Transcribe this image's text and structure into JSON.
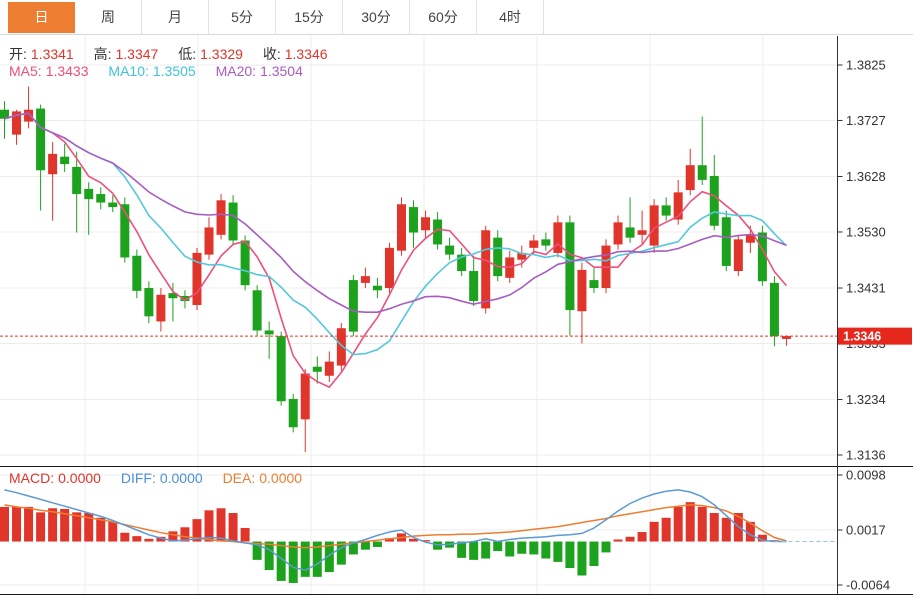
{
  "tabs": {
    "items": [
      {
        "label": "日",
        "active": true
      },
      {
        "label": "周",
        "active": false
      },
      {
        "label": "月",
        "active": false
      },
      {
        "label": "5分",
        "active": false
      },
      {
        "label": "15分",
        "active": false
      },
      {
        "label": "30分",
        "active": false
      },
      {
        "label": "60分",
        "active": false
      },
      {
        "label": "4时",
        "active": false
      }
    ]
  },
  "legend": {
    "open_label": "开:",
    "open_value": "1.3341",
    "high_label": "高:",
    "high_value": "1.3347",
    "low_label": "低:",
    "low_value": "1.3329",
    "close_label": "收:",
    "close_value": "1.3346",
    "ma5_label": "MA5:",
    "ma5_value": "1.3433",
    "ma10_label": "MA10:",
    "ma10_value": "1.3505",
    "ma20_label": "MA20:",
    "ma20_value": "1.3504"
  },
  "macd_legend": {
    "macd_label": "MACD:",
    "macd_value": "0.0000",
    "diff_label": "DIFF:",
    "diff_value": "0.0000",
    "dea_label": "DEA:",
    "dea_value": "0.0000"
  },
  "colors": {
    "up": "#e0352b",
    "down": "#1da21d",
    "ma5": "#ee4f7c",
    "ma10": "#55c8dc",
    "ma20": "#a85cc2",
    "diff": "#5b9bd5",
    "dea": "#ed7d31",
    "price_line": "#e0352b",
    "tag_bg": "#e6281c",
    "tag_text": "#ffffff",
    "grid": "#ececec",
    "axis_line": "#333333",
    "axis_text": "#333333",
    "accent_tab": "#ed7d31",
    "zero_dash": "#8ec6e8"
  },
  "chart_data": {
    "type": "candlestick",
    "panels": [
      {
        "name": "price",
        "y_axis_labels": [
          "1.3825",
          "1.3727",
          "1.3628",
          "1.3530",
          "1.3431",
          "1.3333",
          "1.3234",
          "1.3136"
        ],
        "y_top": 1.3825,
        "y_bottom": 1.3136,
        "last_price": 1.3346,
        "last_price_label": "1.3346",
        "ma_periods": [
          5,
          10,
          20
        ],
        "candles": [
          [
            1.3746,
            1.3761,
            1.3695,
            1.373
          ],
          [
            1.3702,
            1.3746,
            1.3684,
            1.3743
          ],
          [
            1.3725,
            1.3787,
            1.3713,
            1.3746
          ],
          [
            1.3748,
            1.3755,
            1.3568,
            1.3639
          ],
          [
            1.3632,
            1.3689,
            1.355,
            1.3668
          ],
          [
            1.3663,
            1.3686,
            1.3636,
            1.365
          ],
          [
            1.3645,
            1.3672,
            1.3529,
            1.3597
          ],
          [
            1.3606,
            1.3618,
            1.3525,
            1.3588
          ],
          [
            1.3597,
            1.3609,
            1.357,
            1.3582
          ],
          [
            1.3582,
            1.3595,
            1.3565,
            1.3574
          ],
          [
            1.3579,
            1.3591,
            1.3476,
            1.3485
          ],
          [
            1.3488,
            1.3499,
            1.3413,
            1.3426
          ],
          [
            1.3431,
            1.3443,
            1.3369,
            1.3381
          ],
          [
            1.3372,
            1.3431,
            1.3354,
            1.3419
          ],
          [
            1.3422,
            1.344,
            1.3372,
            1.3413
          ],
          [
            1.3417,
            1.3427,
            1.3395,
            1.3408
          ],
          [
            1.3401,
            1.3502,
            1.3392,
            1.3493
          ],
          [
            1.349,
            1.3556,
            1.3481,
            1.3538
          ],
          [
            1.3525,
            1.3597,
            1.3517,
            1.3586
          ],
          [
            1.3582,
            1.3595,
            1.3506,
            1.3515
          ],
          [
            1.3515,
            1.3524,
            1.3427,
            1.3436
          ],
          [
            1.3427,
            1.3436,
            1.3347,
            1.3356
          ],
          [
            1.3356,
            1.3372,
            1.3306,
            1.3349
          ],
          [
            1.3346,
            1.3354,
            1.3223,
            1.3231
          ],
          [
            1.3235,
            1.3244,
            1.3176,
            1.3185
          ],
          [
            1.3199,
            1.3288,
            1.3141,
            1.328
          ],
          [
            1.3292,
            1.331,
            1.3262,
            1.3283
          ],
          [
            1.3276,
            1.3319,
            1.3265,
            1.3301
          ],
          [
            1.3294,
            1.3369,
            1.3285,
            1.336
          ],
          [
            1.3445,
            1.3454,
            1.3346,
            1.3354
          ],
          [
            1.344,
            1.3467,
            1.3431,
            1.3452
          ],
          [
            1.3435,
            1.3449,
            1.3413,
            1.3427
          ],
          [
            1.3431,
            1.3511,
            1.3422,
            1.3502
          ],
          [
            1.3497,
            1.3591,
            1.3488,
            1.3579
          ],
          [
            1.3574,
            1.3586,
            1.3502,
            1.3529
          ],
          [
            1.3533,
            1.3568,
            1.352,
            1.3556
          ],
          [
            1.3552,
            1.3565,
            1.3499,
            1.3508
          ],
          [
            1.3506,
            1.352,
            1.3481,
            1.349
          ],
          [
            1.349,
            1.3502,
            1.3452,
            1.3461
          ],
          [
            1.3461,
            1.3488,
            1.3399,
            1.3408
          ],
          [
            1.3395,
            1.3541,
            1.3386,
            1.3533
          ],
          [
            1.352,
            1.3533,
            1.3443,
            1.3452
          ],
          [
            1.3449,
            1.3497,
            1.344,
            1.3485
          ],
          [
            1.3481,
            1.3506,
            1.3467,
            1.3493
          ],
          [
            1.3502,
            1.3525,
            1.349,
            1.3515
          ],
          [
            1.3517,
            1.3529,
            1.3497,
            1.3506
          ],
          [
            1.3493,
            1.3559,
            1.3485,
            1.3547
          ],
          [
            1.3547,
            1.3559,
            1.3347,
            1.3392
          ],
          [
            1.339,
            1.3476,
            1.3333,
            1.3463
          ],
          [
            1.3445,
            1.3467,
            1.3422,
            1.3431
          ],
          [
            1.3431,
            1.3517,
            1.3422,
            1.3506
          ],
          [
            1.3508,
            1.3559,
            1.3499,
            1.3547
          ],
          [
            1.3538,
            1.3591,
            1.3511,
            1.352
          ],
          [
            1.3525,
            1.3568,
            1.3508,
            1.3533
          ],
          [
            1.3506,
            1.3588,
            1.3493,
            1.3577
          ],
          [
            1.3577,
            1.3591,
            1.355,
            1.3559
          ],
          [
            1.3552,
            1.3622,
            1.3543,
            1.36
          ],
          [
            1.3604,
            1.3677,
            1.3595,
            1.3648
          ],
          [
            1.3648,
            1.3734,
            1.3613,
            1.3622
          ],
          [
            1.3629,
            1.3666,
            1.3533,
            1.3541
          ],
          [
            1.3556,
            1.3568,
            1.3461,
            1.347
          ],
          [
            1.3461,
            1.3525,
            1.3452,
            1.3517
          ],
          [
            1.3511,
            1.3541,
            1.3493,
            1.3524
          ],
          [
            1.3529,
            1.3541,
            1.3435,
            1.3443
          ],
          [
            1.344,
            1.3452,
            1.3328,
            1.3346
          ],
          [
            1.3341,
            1.3347,
            1.3329,
            1.3346
          ]
        ]
      },
      {
        "name": "macd",
        "y_axis_labels": [
          "0.0098",
          "0.0017",
          "-0.0064"
        ],
        "y_top": 0.0098,
        "y_bottom": -0.0064,
        "hist": [
          0.0051,
          0.0051,
          0.0051,
          0.0043,
          0.0049,
          0.0048,
          0.0043,
          0.0042,
          0.0035,
          0.0029,
          0.0013,
          0.0008,
          0.0004,
          0.0007,
          0.0015,
          0.0021,
          0.0033,
          0.0046,
          0.0049,
          0.0042,
          0.002,
          -0.0027,
          -0.0042,
          -0.0058,
          -0.0061,
          -0.0052,
          -0.0052,
          -0.0045,
          -0.0034,
          -0.0019,
          -0.0012,
          -0.0008,
          0.0005,
          0.0012,
          0.0004,
          0.0002,
          -0.0012,
          -0.0009,
          -0.0024,
          -0.0027,
          -0.0025,
          -0.0014,
          -0.0022,
          -0.0018,
          -0.0019,
          -0.0025,
          -0.003,
          -0.0039,
          -0.005,
          -0.0036,
          -0.0016,
          0.0003,
          0.0007,
          0.0014,
          0.0029,
          0.0035,
          0.0051,
          0.0058,
          0.0051,
          0.0042,
          0.0035,
          0.0042,
          0.0029,
          0.001,
          0.0002,
          0.0
        ],
        "diff": [
          0.0076,
          0.0072,
          0.0067,
          0.0062,
          0.0057,
          0.0052,
          0.0047,
          0.0042,
          0.0037,
          0.0031,
          0.0024,
          0.0017,
          0.001,
          0.0005,
          0.0001,
          0.0002,
          0.0004,
          0.0006,
          0.0005,
          0.0001,
          -0.0002,
          -0.0005,
          -0.0012,
          -0.0025,
          -0.0038,
          -0.0042,
          -0.0033,
          -0.002,
          -0.0009,
          -0.0002,
          0.0003,
          0.0009,
          0.0014,
          0.0017,
          0.0006,
          -0.0001,
          -0.0005,
          -0.0004,
          -0.0002,
          0.0,
          0.0004,
          0.0,
          0.0003,
          0.0005,
          0.0006,
          0.0007,
          0.0009,
          0.001,
          0.0012,
          0.002,
          0.0032,
          0.0045,
          0.0056,
          0.0064,
          0.007,
          0.0074,
          0.0076,
          0.0073,
          0.0066,
          0.0054,
          0.0038,
          0.0022,
          0.001,
          0.0002,
          0.0,
          0.0
        ],
        "dea": [
          0.0054,
          0.0051,
          0.0049,
          0.0046,
          0.0044,
          0.0041,
          0.0038,
          0.0035,
          0.0032,
          0.0029,
          0.0025,
          0.0021,
          0.0017,
          0.0013,
          0.001,
          0.0007,
          0.0005,
          0.0003,
          0.0001,
          0.0,
          -0.0002,
          -0.0003,
          -0.0004,
          -0.0006,
          -0.0008,
          -0.0009,
          -0.0008,
          -0.0006,
          -0.0004,
          -0.0002,
          0.0,
          0.0002,
          0.0004,
          0.0006,
          0.0008,
          0.0009,
          0.001,
          0.001,
          0.0011,
          0.0011,
          0.0012,
          0.0013,
          0.0014,
          0.0016,
          0.0018,
          0.002,
          0.0022,
          0.0025,
          0.0028,
          0.0031,
          0.0034,
          0.0038,
          0.0041,
          0.0044,
          0.0047,
          0.005,
          0.0052,
          0.0054,
          0.0053,
          0.005,
          0.0045,
          0.0037,
          0.0027,
          0.0016,
          0.0006,
          0.0001
        ]
      }
    ]
  }
}
